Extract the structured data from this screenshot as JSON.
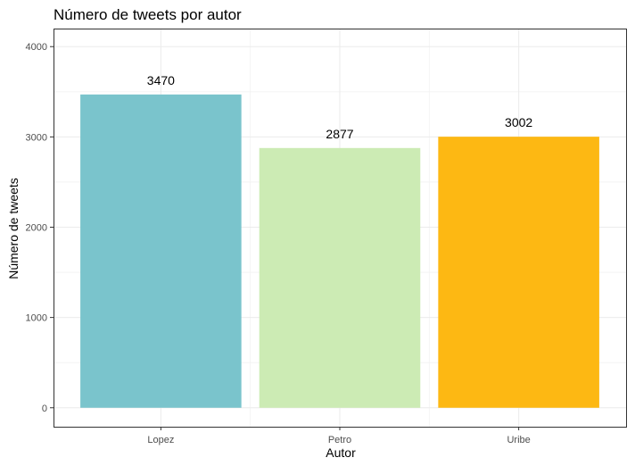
{
  "chart_data": {
    "type": "bar",
    "title": "Número de tweets por autor",
    "xlabel": "Autor",
    "ylabel": "Número de tweets",
    "categories": [
      "Lopez",
      "Petro",
      "Uribe"
    ],
    "values": [
      3470,
      2877,
      3002
    ],
    "data_labels": [
      "3470",
      "2877",
      "3002"
    ],
    "colors": [
      "#7AC4CC",
      "#CCEBB4",
      "#FDB813"
    ],
    "ylim": [
      0,
      4200
    ],
    "yticks": [
      0,
      1000,
      2000,
      3000,
      4000
    ],
    "ytick_labels": [
      "0",
      "1000",
      "2000",
      "3000",
      "4000"
    ],
    "grid": true,
    "legend": "none"
  }
}
